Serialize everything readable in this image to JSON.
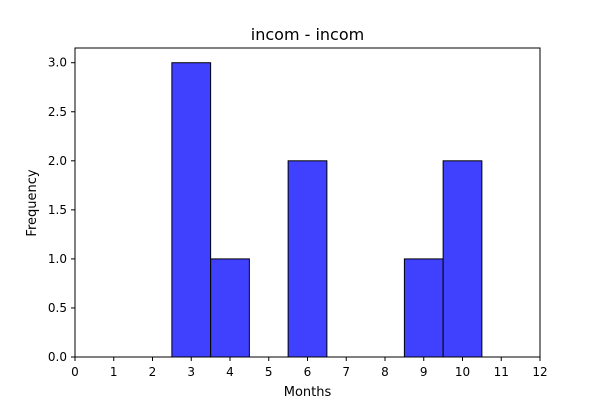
{
  "chart_data": {
    "type": "bar",
    "title": "incom - incom",
    "xlabel": "Months",
    "ylabel": "Frequency",
    "bins": [
      {
        "start": 2.5,
        "end": 3.5,
        "value": 3
      },
      {
        "start": 3.5,
        "end": 4.5,
        "value": 1
      },
      {
        "start": 5.5,
        "end": 6.5,
        "value": 2
      },
      {
        "start": 8.5,
        "end": 9.5,
        "value": 1
      },
      {
        "start": 9.5,
        "end": 10.5,
        "value": 2
      }
    ],
    "xlim": [
      0,
      12
    ],
    "ylim": [
      0,
      3.15
    ],
    "xticks": [
      0,
      1,
      2,
      3,
      4,
      5,
      6,
      7,
      8,
      9,
      10,
      11,
      12
    ],
    "yticks": [
      "0.0",
      "0.5",
      "1.0",
      "1.5",
      "2.0",
      "2.5",
      "3.0"
    ],
    "bar_color": "#4040ff",
    "edge_color": "#000000",
    "grid": false,
    "legend": "none"
  }
}
